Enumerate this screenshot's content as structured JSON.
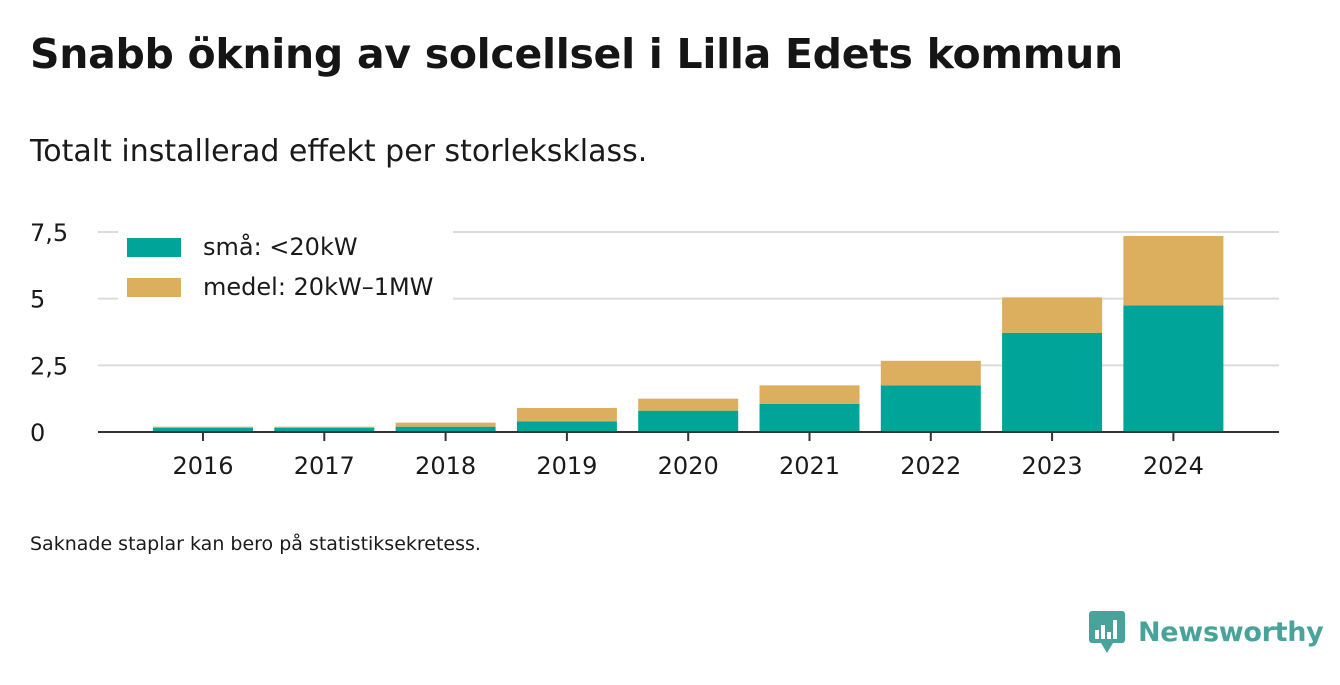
{
  "title": "Snabb ökning av solcellsel i Lilla Edets kommun",
  "subtitle": "Totalt installerad effekt per storleksklass.",
  "footnote": "Saknade staplar kan bero på statistiksekretess.",
  "brand": {
    "name": "Newsworthy",
    "icon": "newsworthy-logo-icon",
    "color": "#4aa39a"
  },
  "chart_data": {
    "type": "bar",
    "stacked": true,
    "categories": [
      "2016",
      "2017",
      "2018",
      "2019",
      "2020",
      "2021",
      "2022",
      "2023",
      "2024"
    ],
    "series": [
      {
        "name": "små: <20kW",
        "color": "#00a499",
        "values": [
          0.15,
          0.15,
          0.2,
          0.4,
          0.8,
          1.05,
          1.75,
          3.72,
          4.75
        ]
      },
      {
        "name": "medel: 20kW–1MW",
        "color": "#dcaf5e",
        "values": [
          0.05,
          0.05,
          0.15,
          0.5,
          0.45,
          0.7,
          0.92,
          1.33,
          2.6
        ]
      }
    ],
    "y_ticks": [
      "0",
      "2,5",
      "5",
      "7,5"
    ],
    "y_tick_values": [
      0,
      2.5,
      5,
      7.5
    ],
    "ylim": [
      0,
      7.5
    ],
    "grid": true,
    "legend_position": "top-left"
  }
}
